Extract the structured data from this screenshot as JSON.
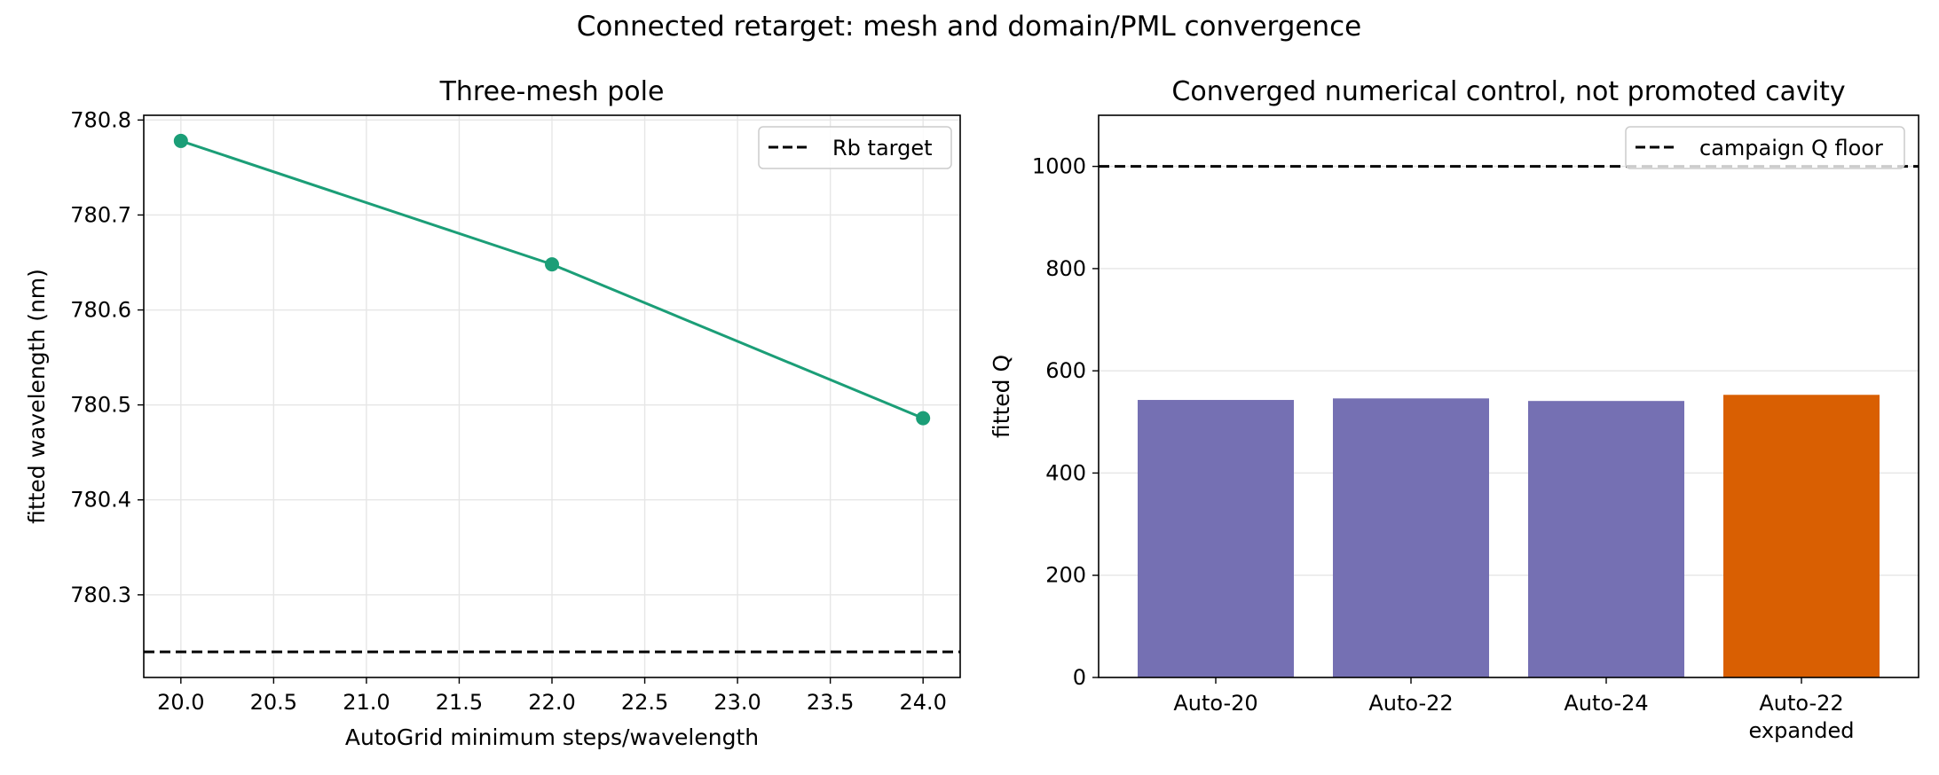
{
  "figure": {
    "suptitle": "Connected retarget: mesh and domain/PML convergence"
  },
  "colors": {
    "line": "#1b9e77",
    "bar": "#7570b3",
    "bar_highlight": "#d95f02",
    "reference": "#000000",
    "grid": "#e6e6e6"
  },
  "chart_data": [
    {
      "type": "line",
      "title": "Three-mesh pole",
      "xlabel": "AutoGrid minimum steps/wavelength",
      "ylabel": "fitted wavelength (nm)",
      "x": [
        20,
        22,
        24
      ],
      "series": [
        {
          "values": [
            780.778,
            780.648,
            780.486
          ]
        }
      ],
      "xlim": [
        19.8,
        24.2
      ],
      "ylim": [
        780.213,
        780.805
      ],
      "xticks": [
        "20.0",
        "20.5",
        "21.0",
        "21.5",
        "22.0",
        "22.5",
        "23.0",
        "23.5",
        "24.0"
      ],
      "yticks": [
        "780.3",
        "780.4",
        "780.5",
        "780.6",
        "780.7",
        "780.8"
      ],
      "reference_line": {
        "label": "Rb target",
        "value": 780.24,
        "style": "dashed"
      },
      "legend": "top-right",
      "grid": true,
      "markers": true
    },
    {
      "type": "bar",
      "title": "Converged numerical control, not promoted cavity",
      "xlabel": "",
      "ylabel": "fitted Q",
      "categories": [
        "Auto-20",
        "Auto-22",
        "Auto-24",
        "Auto-22\nexpanded"
      ],
      "values": [
        543,
        546,
        541,
        553
      ],
      "highlight_index": 3,
      "ylim": [
        0,
        1100
      ],
      "yticks": [
        "0",
        "200",
        "400",
        "600",
        "800",
        "1000"
      ],
      "reference_line": {
        "label": "campaign Q floor",
        "value": 1000,
        "style": "dashed"
      },
      "legend": "top-right",
      "grid": "y"
    }
  ]
}
